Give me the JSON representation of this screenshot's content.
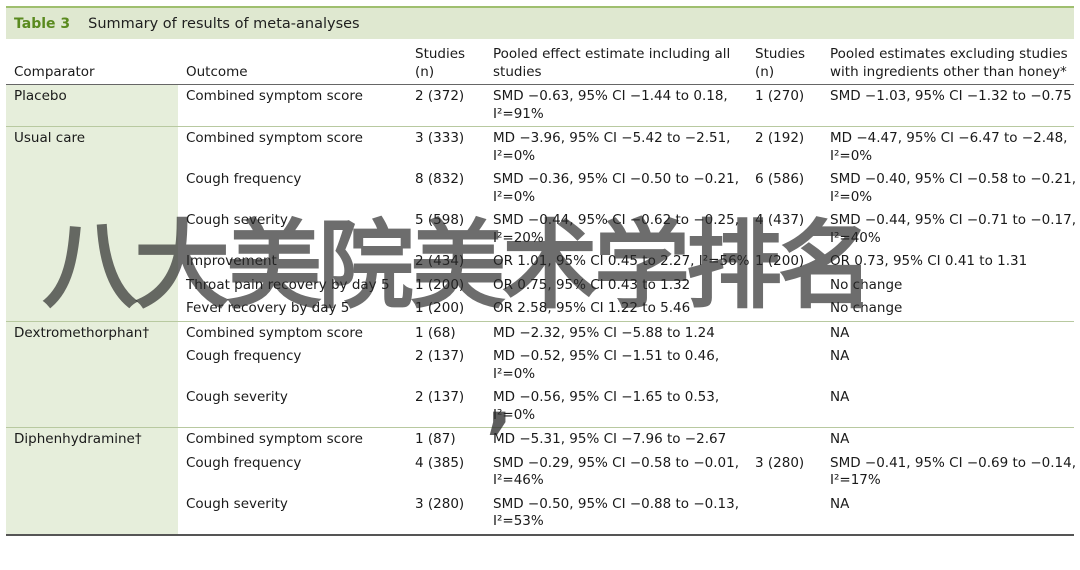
{
  "table": {
    "label": "Table 3",
    "title": "Summary of results of meta-analyses",
    "headers": {
      "comparator": "Comparator",
      "outcome": "Outcome",
      "studies1": "Studies (n)",
      "pooled_all": "Pooled effect estimate including all studies",
      "studies2": "Studies (n)",
      "pooled_excl": "Pooled estimates excluding studies with ingredients other than honey*"
    },
    "rows": [
      {
        "comparator": "Placebo",
        "outcome": "Combined symptom score",
        "studies1": "2 (372)",
        "pooled_all": "SMD −0.63, 95% CI −1.44 to 0.18,",
        "pooled_all_i2": "I²=91%",
        "studies2": "1 (270)",
        "pooled_excl": "SMD −1.03, 95% CI −1.32 to −0.75",
        "pooled_excl_i2": ""
      },
      {
        "comparator": "Usual care",
        "outcome": "Combined symptom score",
        "studies1": "3 (333)",
        "pooled_all": "MD −3.96, 95% CI −5.42 to −2.51,",
        "pooled_all_i2": "I²=0%",
        "studies2": "2 (192)",
        "pooled_excl": "MD −4.47, 95% CI −6.47 to −2.48,",
        "pooled_excl_i2": "I²=0%"
      },
      {
        "comparator": "",
        "outcome": "Cough frequency",
        "studies1": "8 (832)",
        "pooled_all": "SMD −0.36, 95% CI −0.50 to −0.21,",
        "pooled_all_i2": "I²=0%",
        "studies2": "6 (586)",
        "pooled_excl": "SMD −0.40, 95% CI −0.58 to −0.21,",
        "pooled_excl_i2": "I²=0%"
      },
      {
        "comparator": "",
        "outcome": "Cough severity",
        "studies1": "5 (598)",
        "pooled_all": "SMD −0.44, 95% CI −0.62 to −0.25,",
        "pooled_all_i2": "I²=20%",
        "studies2": "4 (437)",
        "pooled_excl": "SMD −0.44, 95% CI −0.71 to −0.17,",
        "pooled_excl_i2": "I²=40%"
      },
      {
        "comparator": "",
        "outcome": "Improvement",
        "studies1": "2 (434)",
        "pooled_all": "OR 1.01, 95% CI 0.45 to 2.27, I²=56%",
        "pooled_all_i2": "",
        "studies2": "1 (200)",
        "pooled_excl": "OR 0.73, 95% CI 0.41 to 1.31",
        "pooled_excl_i2": ""
      },
      {
        "comparator": "",
        "outcome": "Throat pain recovery by day 5",
        "studies1": "1 (200)",
        "pooled_all": "OR 0.75, 95% CI 0.43 to 1.32",
        "pooled_all_i2": "",
        "studies2": "",
        "pooled_excl": "No change",
        "pooled_excl_i2": ""
      },
      {
        "comparator": "",
        "outcome": "Fever recovery by day 5",
        "studies1": "1 (200)",
        "pooled_all": "OR 2.58, 95% CI 1.22 to 5.46",
        "pooled_all_i2": "",
        "studies2": "",
        "pooled_excl": "No change",
        "pooled_excl_i2": ""
      },
      {
        "comparator": "Dextromethorphan†",
        "outcome": "Combined symptom score",
        "studies1": "1 (68)",
        "pooled_all": "MD −2.32, 95% CI −5.88 to 1.24",
        "pooled_all_i2": "",
        "studies2": "",
        "pooled_excl": "NA",
        "pooled_excl_i2": ""
      },
      {
        "comparator": "",
        "outcome": "Cough frequency",
        "studies1": "2 (137)",
        "pooled_all": "MD −0.52, 95% CI −1.51 to 0.46,",
        "pooled_all_i2": "I²=0%",
        "studies2": "",
        "pooled_excl": "NA",
        "pooled_excl_i2": ""
      },
      {
        "comparator": "",
        "outcome": "Cough severity",
        "studies1": "2 (137)",
        "pooled_all": "MD −0.56, 95% CI −1.65 to 0.53,",
        "pooled_all_i2": "I²=0%",
        "studies2": "",
        "pooled_excl": "NA",
        "pooled_excl_i2": ""
      },
      {
        "comparator": "Diphenhydramine†",
        "outcome": "Combined symptom score",
        "studies1": "1 (87)",
        "pooled_all": "MD −5.31, 95% CI −7.96 to −2.67",
        "pooled_all_i2": "",
        "studies2": "",
        "pooled_excl": "NA",
        "pooled_excl_i2": ""
      },
      {
        "comparator": "",
        "outcome": "Cough frequency",
        "studies1": "4 (385)",
        "pooled_all": "SMD −0.29, 95% CI −0.58 to −0.01,",
        "pooled_all_i2": "I²=46%",
        "studies2": "3 (280)",
        "pooled_excl": "SMD −0.41, 95% CI −0.69 to −0.14,",
        "pooled_excl_i2": "I²=17%"
      },
      {
        "comparator": "",
        "outcome": "Cough severity",
        "studies1": "3 (280)",
        "pooled_all": "SMD −0.50, 95% CI −0.88 to −0.13,",
        "pooled_all_i2": "I²=53%",
        "studies2": "",
        "pooled_excl": "NA",
        "pooled_excl_i2": ""
      }
    ],
    "group_starts": [
      0,
      1,
      7,
      10
    ]
  },
  "watermark": {
    "text": "八大美院美术学排名",
    "mark": ","
  }
}
